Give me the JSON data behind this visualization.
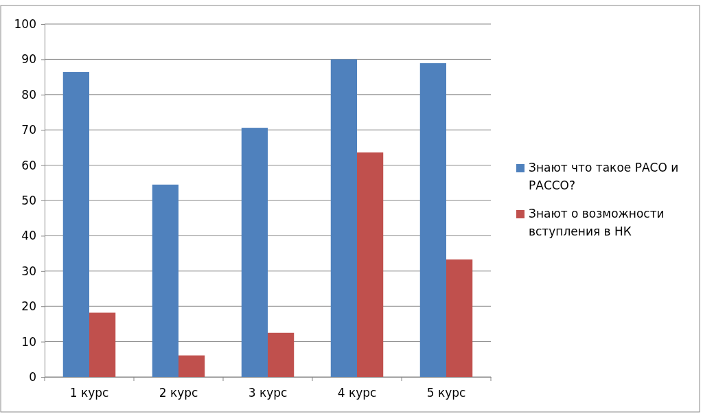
{
  "chart_data": {
    "type": "bar",
    "categories": [
      "1 курс",
      "2 курс",
      "3 курс",
      "4 курс",
      "5 курс"
    ],
    "series": [
      {
        "name": "Знают что такое РАСО и РАССО?",
        "color": "#4f81bd",
        "values": [
          86.4,
          54.5,
          70.6,
          90,
          88.9
        ]
      },
      {
        "name": "Знают о возможности вступления в НК",
        "color": "#c0504d",
        "values": [
          18.2,
          6.1,
          12.5,
          63.6,
          33.3
        ]
      }
    ],
    "ylim": [
      0,
      100
    ],
    "yticks": [
      0,
      10,
      20,
      30,
      40,
      50,
      60,
      70,
      80,
      90,
      100
    ],
    "grid": "y",
    "legend": "right"
  }
}
